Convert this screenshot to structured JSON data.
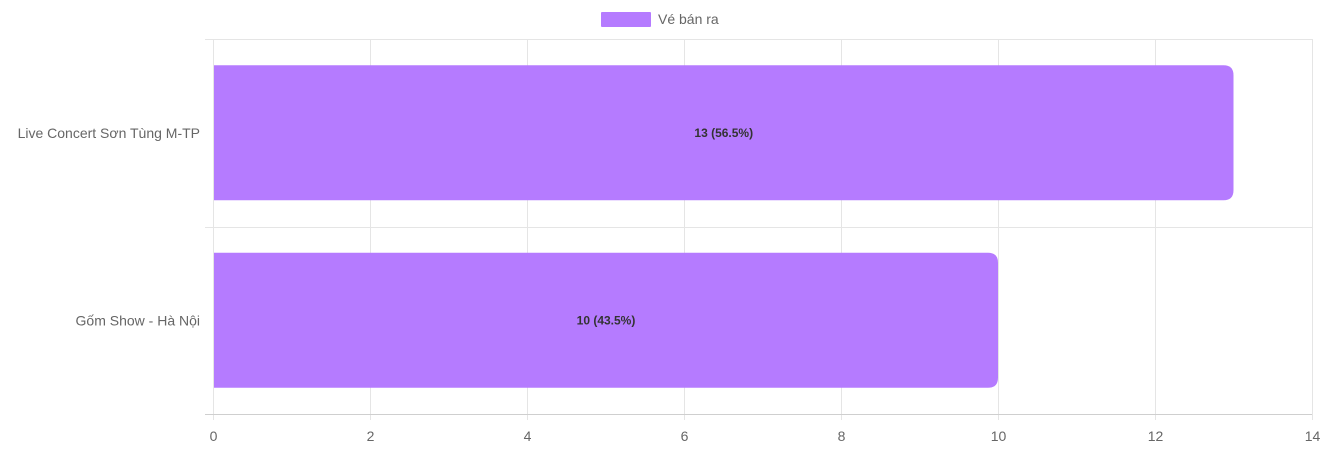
{
  "chart_data": {
    "type": "bar",
    "orientation": "horizontal",
    "categories": [
      "Live Concert Sơn Tùng M-TP",
      "Gốm Show - Hà Nội"
    ],
    "series": [
      {
        "name": "Vé bán ra",
        "values": [
          13,
          10
        ],
        "data_labels": [
          "13 (56.5%)",
          "10 (43.5%)"
        ],
        "color": "#b57bff"
      }
    ],
    "x_ticks": [
      "0",
      "2",
      "4",
      "6",
      "8",
      "10",
      "12",
      "14"
    ],
    "xlim": [
      0,
      14
    ],
    "grid": true,
    "legend_position": "top-center"
  }
}
